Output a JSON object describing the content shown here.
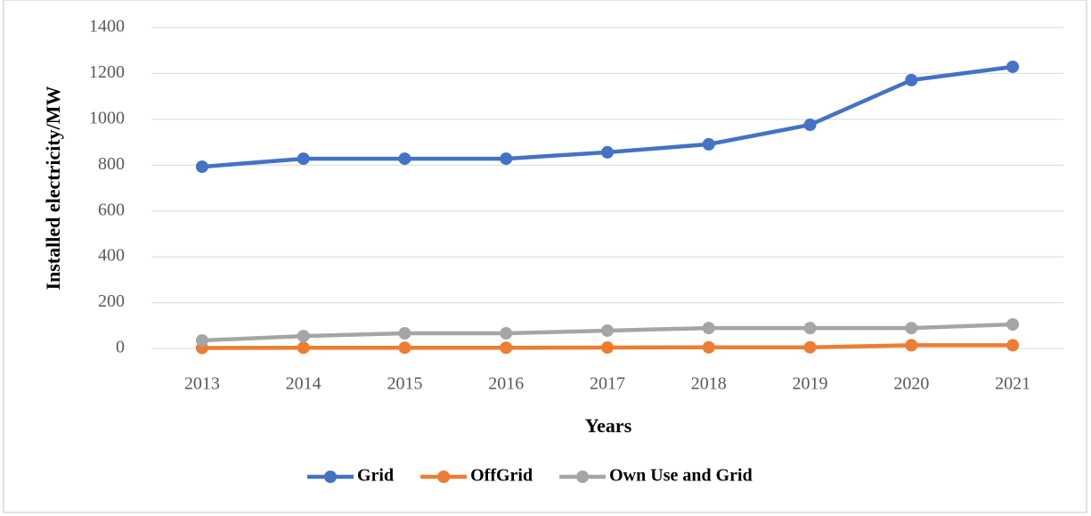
{
  "chart_data": {
    "type": "line",
    "x_label": "Years",
    "y_label": "Installed electricity/MW",
    "categories": [
      "2013",
      "2014",
      "2015",
      "2016",
      "2017",
      "2018",
      "2019",
      "2020",
      "2021"
    ],
    "series": [
      {
        "name": "Grid",
        "color": "#4472c4",
        "values": [
          793,
          828,
          828,
          828,
          856,
          891,
          976,
          1171,
          1229
        ]
      },
      {
        "name": "OffGrid",
        "color": "#ed7d31",
        "values": [
          2,
          3,
          3,
          3,
          4,
          5,
          5,
          14,
          14
        ]
      },
      {
        "name": "Own Use and Grid",
        "color": "#a5a5a5",
        "values": [
          35,
          54,
          66,
          66,
          78,
          89,
          89,
          89,
          105
        ]
      }
    ],
    "ylim": [
      0,
      1400
    ],
    "yticks": [
      0,
      200,
      400,
      600,
      800,
      1000,
      1200,
      1400
    ],
    "grid": true,
    "legend": "bottom"
  }
}
